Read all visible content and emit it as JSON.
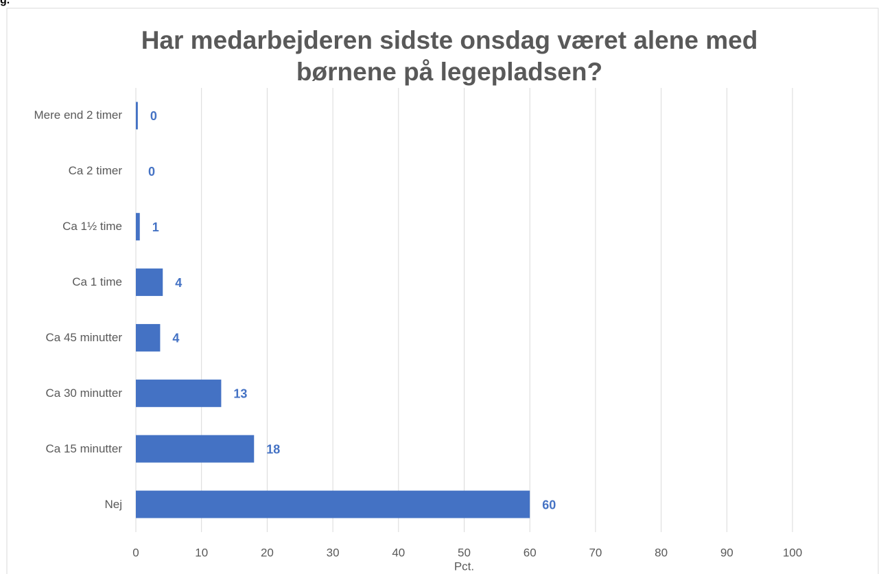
{
  "caption": "g.",
  "chart_data": {
    "type": "barh",
    "title": "Har medarbejderen sidste onsdag været alene med børnene på legepladsen?",
    "x_label": "Pct.",
    "categories": [
      "Mere end 2 timer",
      "Ca 2 timer",
      "Ca 1½ time",
      "Ca 1 time",
      "Ca 45 minutter",
      "Ca 30 minutter",
      "Ca 15 minutter",
      "Nej"
    ],
    "values": [
      0.3,
      0,
      0.6,
      4.1,
      3.7,
      13,
      18,
      60
    ],
    "value_labels": [
      "0",
      "0",
      "1",
      "4",
      "4",
      "13",
      "18",
      "60"
    ],
    "color": "#4472c4",
    "xlim": [
      0,
      100
    ],
    "xticks": [
      0,
      10,
      20,
      30,
      40,
      50,
      60,
      70,
      80,
      90,
      100
    ],
    "grid": true
  }
}
